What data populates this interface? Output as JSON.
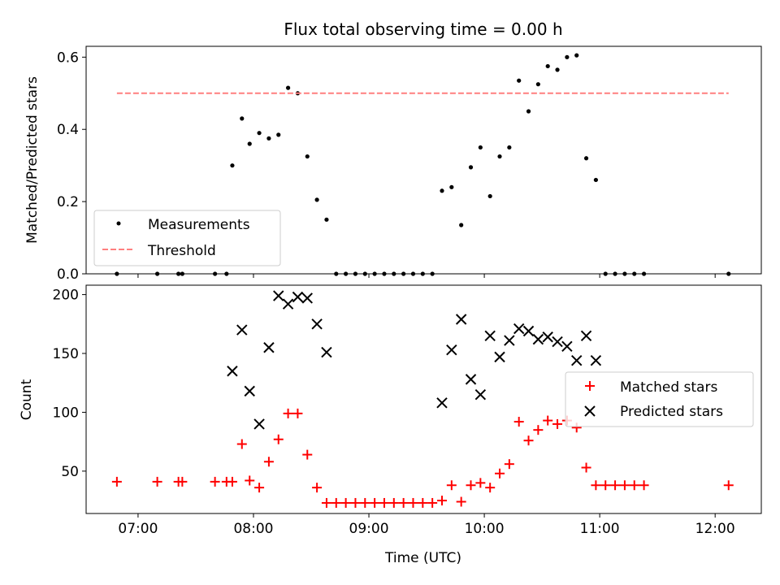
{
  "chart_data": [
    {
      "type": "scatter",
      "title": "Flux total observing time = 0.00 h",
      "xlabel": "",
      "ylabel": "Matched/Predicted stars",
      "xlim": [
        "06:33",
        "12:24"
      ],
      "ylim": [
        0,
        0.63
      ],
      "y_ticks": [
        0.0,
        0.2,
        0.4,
        0.6
      ],
      "y_tick_labels": [
        "0.0",
        "0.2",
        "0.4",
        "0.6"
      ],
      "x_ticks": [
        "07:00",
        "08:00",
        "09:00",
        "10:00",
        "11:00",
        "12:00"
      ],
      "x_tick_labels_visible": false,
      "legend_position": "lower-left",
      "series": [
        {
          "name": "Measurements",
          "marker": "dot",
          "color": "#000000",
          "points": [
            [
              "06:49",
              0.0
            ],
            [
              "07:10",
              0.0
            ],
            [
              "07:21",
              0.0
            ],
            [
              "07:23",
              0.0
            ],
            [
              "07:40",
              0.0
            ],
            [
              "07:46",
              0.0
            ],
            [
              "07:49",
              0.3
            ],
            [
              "07:54",
              0.43
            ],
            [
              "07:58",
              0.36
            ],
            [
              "08:03",
              0.39
            ],
            [
              "08:08",
              0.375
            ],
            [
              "08:13",
              0.385
            ],
            [
              "08:18",
              0.515
            ],
            [
              "08:23",
              0.5
            ],
            [
              "08:28",
              0.325
            ],
            [
              "08:33",
              0.205
            ],
            [
              "08:38",
              0.15
            ],
            [
              "08:43",
              0.0
            ],
            [
              "08:48",
              0.0
            ],
            [
              "08:53",
              0.0
            ],
            [
              "08:58",
              0.0
            ],
            [
              "09:03",
              0.0
            ],
            [
              "09:08",
              0.0
            ],
            [
              "09:13",
              0.0
            ],
            [
              "09:18",
              0.0
            ],
            [
              "09:23",
              0.0
            ],
            [
              "09:28",
              0.0
            ],
            [
              "09:33",
              0.0
            ],
            [
              "09:38",
              0.23
            ],
            [
              "09:43",
              0.24
            ],
            [
              "09:48",
              0.135
            ],
            [
              "09:53",
              0.295
            ],
            [
              "09:58",
              0.35
            ],
            [
              "10:03",
              0.215
            ],
            [
              "10:08",
              0.325
            ],
            [
              "10:13",
              0.35
            ],
            [
              "10:18",
              0.535
            ],
            [
              "10:23",
              0.45
            ],
            [
              "10:28",
              0.525
            ],
            [
              "10:33",
              0.575
            ],
            [
              "10:38",
              0.565
            ],
            [
              "10:43",
              0.6
            ],
            [
              "10:48",
              0.605
            ],
            [
              "10:53",
              0.32
            ],
            [
              "10:58",
              0.26
            ],
            [
              "11:03",
              0.0
            ],
            [
              "11:08",
              0.0
            ],
            [
              "11:13",
              0.0
            ],
            [
              "11:18",
              0.0
            ],
            [
              "11:23",
              0.0
            ],
            [
              "12:07",
              0.0
            ]
          ]
        },
        {
          "name": "Threshold",
          "type": "line",
          "style": "dashed",
          "color": "#ff7f7f",
          "x": [
            "06:49",
            "12:07"
          ],
          "values": [
            0.5,
            0.5
          ]
        }
      ]
    },
    {
      "type": "scatter",
      "title": "",
      "xlabel": "Time (UTC)",
      "ylabel": "Count",
      "xlim": [
        "06:33",
        "12:24"
      ],
      "ylim": [
        14,
        208
      ],
      "y_ticks": [
        50,
        100,
        150,
        200
      ],
      "y_tick_labels": [
        "50",
        "100",
        "150",
        "200"
      ],
      "x_ticks": [
        "07:00",
        "08:00",
        "09:00",
        "10:00",
        "11:00",
        "12:00"
      ],
      "x_tick_labels": [
        "07:00",
        "08:00",
        "09:00",
        "10:00",
        "11:00",
        "12:00"
      ],
      "legend_position": "center-right",
      "series": [
        {
          "name": "Matched stars",
          "marker": "plus",
          "color": "#ff0000",
          "points": [
            [
              "06:49",
              41
            ],
            [
              "07:10",
              41
            ],
            [
              "07:21",
              41
            ],
            [
              "07:23",
              41
            ],
            [
              "07:40",
              41
            ],
            [
              "07:46",
              41
            ],
            [
              "07:49",
              41
            ],
            [
              "07:54",
              73
            ],
            [
              "07:58",
              42
            ],
            [
              "08:03",
              36
            ],
            [
              "08:08",
              58
            ],
            [
              "08:13",
              77
            ],
            [
              "08:18",
              99
            ],
            [
              "08:23",
              99
            ],
            [
              "08:28",
              64
            ],
            [
              "08:33",
              36
            ],
            [
              "08:38",
              23
            ],
            [
              "08:43",
              23
            ],
            [
              "08:48",
              23
            ],
            [
              "08:53",
              23
            ],
            [
              "08:58",
              23
            ],
            [
              "09:03",
              23
            ],
            [
              "09:08",
              23
            ],
            [
              "09:13",
              23
            ],
            [
              "09:18",
              23
            ],
            [
              "09:23",
              23
            ],
            [
              "09:28",
              23
            ],
            [
              "09:33",
              23
            ],
            [
              "09:38",
              25
            ],
            [
              "09:43",
              38
            ],
            [
              "09:48",
              24
            ],
            [
              "09:53",
              38
            ],
            [
              "09:58",
              40
            ],
            [
              "10:03",
              36
            ],
            [
              "10:08",
              48
            ],
            [
              "10:13",
              56
            ],
            [
              "10:18",
              92
            ],
            [
              "10:23",
              76
            ],
            [
              "10:28",
              85
            ],
            [
              "10:33",
              93
            ],
            [
              "10:38",
              90
            ],
            [
              "10:43",
              93
            ],
            [
              "10:48",
              87
            ],
            [
              "10:53",
              53
            ],
            [
              "10:58",
              38
            ],
            [
              "11:03",
              38
            ],
            [
              "11:08",
              38
            ],
            [
              "11:13",
              38
            ],
            [
              "11:18",
              38
            ],
            [
              "11:23",
              38
            ],
            [
              "12:07",
              38
            ]
          ]
        },
        {
          "name": "Predicted stars",
          "marker": "x",
          "color": "#000000",
          "points": [
            [
              "07:49",
              135
            ],
            [
              "07:54",
              170
            ],
            [
              "07:58",
              118
            ],
            [
              "08:03",
              90
            ],
            [
              "08:08",
              155
            ],
            [
              "08:13",
              199
            ],
            [
              "08:18",
              192
            ],
            [
              "08:23",
              198
            ],
            [
              "08:28",
              197
            ],
            [
              "08:33",
              175
            ],
            [
              "08:38",
              151
            ],
            [
              "09:38",
              108
            ],
            [
              "09:43",
              153
            ],
            [
              "09:48",
              179
            ],
            [
              "09:53",
              128
            ],
            [
              "09:58",
              115
            ],
            [
              "10:03",
              165
            ],
            [
              "10:08",
              147
            ],
            [
              "10:13",
              161
            ],
            [
              "10:18",
              171
            ],
            [
              "10:23",
              169
            ],
            [
              "10:28",
              162
            ],
            [
              "10:33",
              164
            ],
            [
              "10:38",
              160
            ],
            [
              "10:43",
              156
            ],
            [
              "10:48",
              144
            ],
            [
              "10:53",
              165
            ],
            [
              "10:58",
              144
            ]
          ]
        }
      ]
    }
  ]
}
